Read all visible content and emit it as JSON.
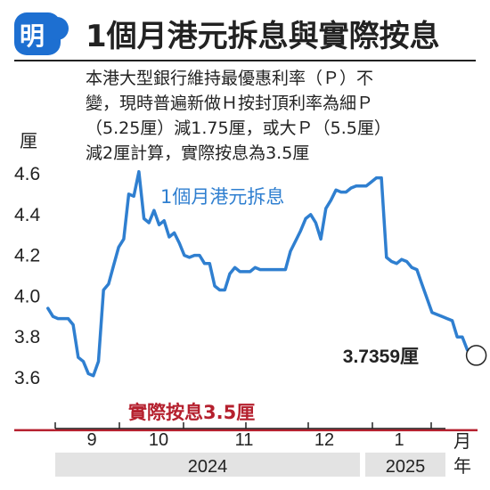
{
  "header": {
    "logo": "明",
    "title": "1個月港元拆息與實際按息"
  },
  "note": [
    "本港大型銀行維持最優惠利率（Ｐ）不",
    "變，現時普遍新做Ｈ按封頂利率為細Ｐ",
    "（5.25厘）減1.75厘，或大Ｐ（5.5厘）",
    "減2厘計算，實際按息為3.5厘"
  ],
  "colors": {
    "accent": "#3a7bd5",
    "line": "#2f7fd0",
    "reference": "#b5202e",
    "logo_bg": "#1d6fd1",
    "year_band": "#e3e3e3"
  },
  "chart_data": {
    "type": "line",
    "ylabel": "厘",
    "xlabel": "月",
    "year_unit": "年",
    "ylim": [
      3.5,
      4.65
    ],
    "yticks": [
      "4.6",
      "4.4",
      "4.2",
      "4.0",
      "3.8",
      "3.6"
    ],
    "grid": false,
    "months": [
      {
        "label": "9",
        "year": "2024"
      },
      {
        "label": "10",
        "year": "2024"
      },
      {
        "label": "11",
        "year": "2024"
      },
      {
        "label": "12",
        "year": "2024"
      },
      {
        "label": "1",
        "year": "2025"
      }
    ],
    "years": [
      "2024",
      "2025"
    ],
    "series": [
      {
        "name": "1個月港元拆息",
        "x": [
          "2024-08-15",
          "2024-08-17",
          "2024-08-19",
          "2024-08-21",
          "2024-08-23",
          "2024-08-25",
          "2024-08-27",
          "2024-08-29",
          "2024-08-31",
          "2024-09-02",
          "2024-09-04",
          "2024-09-06",
          "2024-09-08",
          "2024-09-10",
          "2024-09-12",
          "2024-09-14",
          "2024-09-16",
          "2024-09-18",
          "2024-09-20",
          "2024-09-22",
          "2024-09-24",
          "2024-09-26",
          "2024-09-28",
          "2024-09-30",
          "2024-10-02",
          "2024-10-04",
          "2024-10-06",
          "2024-10-08",
          "2024-10-10",
          "2024-10-12",
          "2024-10-14",
          "2024-10-16",
          "2024-10-18",
          "2024-10-20",
          "2024-10-22",
          "2024-10-24",
          "2024-10-26",
          "2024-10-28",
          "2024-10-30",
          "2024-11-01",
          "2024-11-03",
          "2024-11-05",
          "2024-11-07",
          "2024-11-09",
          "2024-11-11",
          "2024-11-13",
          "2024-11-15",
          "2024-11-17",
          "2024-11-19",
          "2024-11-21",
          "2024-11-23",
          "2024-11-25",
          "2024-11-27",
          "2024-11-29",
          "2024-12-01",
          "2024-12-03",
          "2024-12-05",
          "2024-12-07",
          "2024-12-09",
          "2024-12-11",
          "2024-12-13",
          "2024-12-15",
          "2024-12-17",
          "2024-12-19",
          "2024-12-21",
          "2024-12-23",
          "2024-12-25",
          "2024-12-27",
          "2024-12-29",
          "2024-12-31",
          "2025-01-02",
          "2025-01-04",
          "2025-01-06",
          "2025-01-08",
          "2025-01-10",
          "2025-01-12",
          "2025-01-14",
          "2025-01-16",
          "2025-01-18",
          "2025-01-20",
          "2025-01-22",
          "2025-01-24",
          "2025-01-26"
        ],
        "y": [
          3.94,
          3.9,
          3.89,
          3.89,
          3.89,
          3.86,
          3.7,
          3.68,
          3.62,
          3.61,
          3.68,
          4.03,
          4.06,
          4.15,
          4.24,
          4.28,
          4.5,
          4.49,
          4.61,
          4.38,
          4.36,
          4.42,
          4.35,
          4.37,
          4.29,
          4.31,
          4.26,
          4.2,
          4.19,
          4.2,
          4.2,
          4.16,
          4.16,
          4.05,
          4.03,
          4.03,
          4.11,
          4.14,
          4.12,
          4.12,
          4.12,
          4.14,
          4.13,
          4.13,
          4.13,
          4.13,
          4.13,
          4.13,
          4.22,
          4.27,
          4.32,
          4.38,
          4.4,
          4.36,
          4.28,
          4.43,
          4.47,
          4.52,
          4.51,
          4.51,
          4.53,
          4.54,
          4.54,
          4.54,
          4.56,
          4.58,
          4.58,
          4.19,
          4.17,
          4.16,
          4.18,
          4.17,
          4.14,
          4.13,
          4.06,
          3.99,
          3.92,
          3.91,
          3.9,
          3.89,
          3.88,
          3.8,
          3.8
        ]
      }
    ],
    "last_point": {
      "x": "2025-01-28",
      "y": 3.7359,
      "label": "3.7359厘"
    },
    "reference_line": {
      "name": "實際按息",
      "value": 3.5,
      "label_prefix": "實際按息",
      "label_value": "3.5厘"
    }
  }
}
